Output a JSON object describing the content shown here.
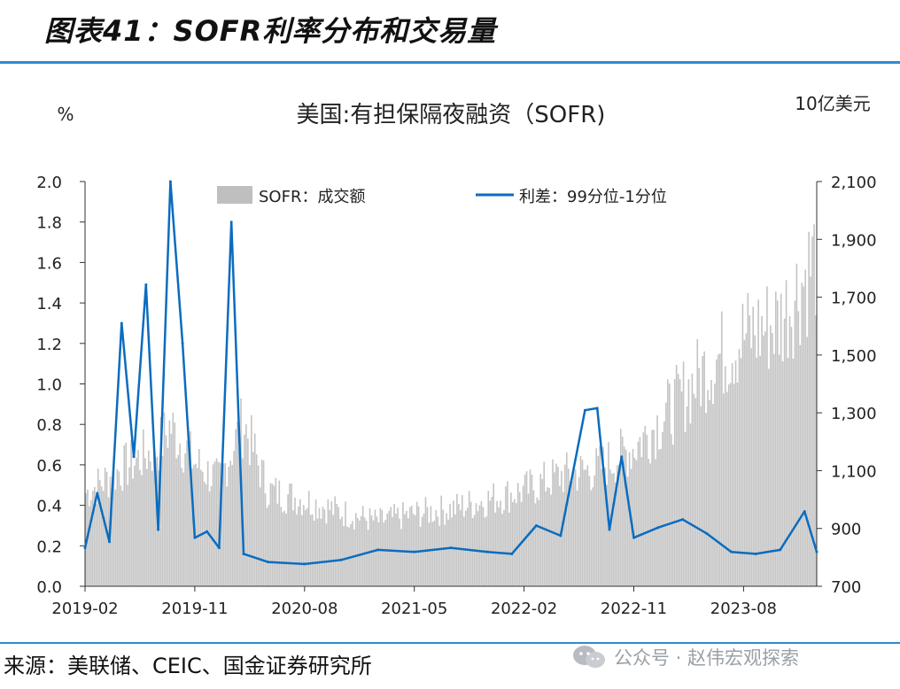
{
  "header": {
    "title": "图表41：SOFR利率分布和交易量"
  },
  "chart_data": {
    "type": "bar+line",
    "title": "美国:有担保隔夜融资（SOFR)",
    "ylabel_left": "%",
    "ylabel_right": "10亿美元",
    "y_left_range": [
      0.0,
      2.0
    ],
    "y_right_range": [
      700,
      2100
    ],
    "left_ticks": [
      "0.0",
      "0.2",
      "0.4",
      "0.6",
      "0.8",
      "1.0",
      "1.2",
      "1.4",
      "1.6",
      "1.8",
      "2.0"
    ],
    "right_ticks": [
      "700",
      "900",
      "1,100",
      "1,300",
      "1,500",
      "1,700",
      "1,900",
      "2,100"
    ],
    "x_ticks": [
      "2019-02",
      "2019-11",
      "2020-08",
      "2021-05",
      "2022-02",
      "2022-11",
      "2023-08"
    ],
    "x_start": "2019-02",
    "x_end": "2024-02",
    "legend": [
      {
        "name": "SOFR：成交额",
        "type": "bar",
        "color": "#bfbfbf"
      },
      {
        "name": "利差：99分位-1分位",
        "type": "line",
        "color": "#0a6cbf"
      }
    ],
    "series": [
      {
        "name": "SOFR：成交额",
        "axis": "right",
        "unit": "10亿美元",
        "dates": [
          "2019-02",
          "2019-05",
          "2019-08",
          "2019-09",
          "2019-11",
          "2020-01",
          "2020-02",
          "2020-03",
          "2020-05",
          "2020-08",
          "2020-11",
          "2021-02",
          "2021-05",
          "2021-08",
          "2021-11",
          "2022-02",
          "2022-05",
          "2022-08",
          "2022-11",
          "2023-02",
          "2023-05",
          "2023-08",
          "2023-11",
          "2024-01",
          "2024-02"
        ],
        "values": [
          1000,
          1080,
          1150,
          1220,
          1100,
          1040,
          1140,
          1230,
          1010,
          980,
          940,
          910,
          935,
          950,
          980,
          1010,
          1060,
          1080,
          1150,
          1270,
          1410,
          1510,
          1560,
          1700,
          1770
        ]
      },
      {
        "name": "利差：99分位-1分位",
        "axis": "left",
        "unit": "%",
        "dates": [
          "2019-02",
          "2019-03",
          "2019-04",
          "2019-05",
          "2019-06",
          "2019-07",
          "2019-08",
          "2019-09",
          "2019-10",
          "2019-11",
          "2019-12",
          "2020-01",
          "2020-02",
          "2020-03",
          "2020-05",
          "2020-08",
          "2020-11",
          "2021-02",
          "2021-05",
          "2021-08",
          "2021-11",
          "2022-01",
          "2022-03",
          "2022-05",
          "2022-07",
          "2022-08",
          "2022-09",
          "2022-10",
          "2022-11",
          "2023-01",
          "2023-03",
          "2023-05",
          "2023-07",
          "2023-09",
          "2023-11",
          "2024-01",
          "2024-02"
        ],
        "values": [
          0.19,
          0.46,
          0.22,
          1.3,
          0.64,
          1.49,
          0.28,
          2.0,
          1.2,
          0.24,
          0.27,
          0.19,
          1.8,
          0.16,
          0.12,
          0.11,
          0.13,
          0.18,
          0.17,
          0.19,
          0.17,
          0.16,
          0.3,
          0.25,
          0.87,
          0.88,
          0.28,
          0.64,
          0.24,
          0.29,
          0.33,
          0.26,
          0.17,
          0.16,
          0.18,
          0.37,
          0.17
        ]
      }
    ]
  },
  "footer": {
    "source": "来源：美联储、CEIC、国金证券研究所",
    "watermark": "公众号 · 赵伟宏观探索"
  }
}
